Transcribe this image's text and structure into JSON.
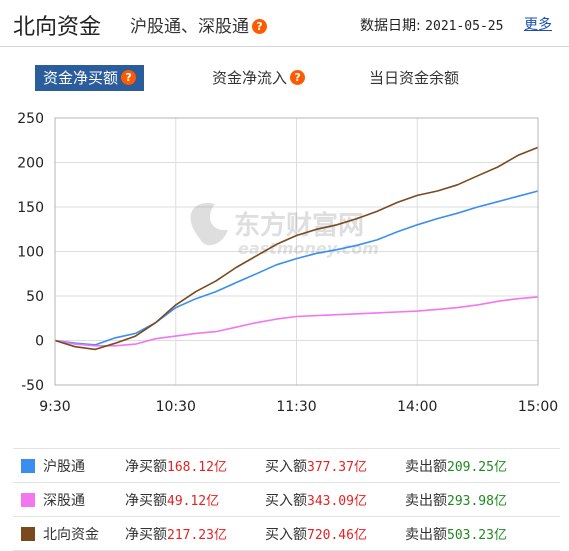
{
  "header": {
    "title": "北向资金",
    "subtitle": "沪股通、深股通",
    "help_glyph": "?",
    "date_label": "数据日期:",
    "date_value": "2021-05-25",
    "more_link": "更多"
  },
  "tabs": [
    {
      "label": "资金净买额",
      "active": true
    },
    {
      "label": "资金净流入",
      "active": false
    },
    {
      "label": "当日资金余额",
      "active": false
    }
  ],
  "watermark": {
    "brand": "东方财富网",
    "domain": "eastmoney.com"
  },
  "colors": {
    "hgt": "#3a8ef0",
    "sgt": "#f276f0",
    "north": "#7a4a1e",
    "grid": "#dddddd",
    "tab_active": "#2b5c9c"
  },
  "chart_data": {
    "type": "line",
    "title": "",
    "xlabel": "",
    "ylabel": "",
    "x_ticks": [
      "9:30",
      "10:30",
      "11:30",
      "14:00",
      "15:00"
    ],
    "y_ticks": [
      250,
      200,
      150,
      100,
      50,
      0,
      -50
    ],
    "ylim": [
      -50,
      250
    ],
    "x_minutes": [
      0,
      10,
      20,
      30,
      40,
      50,
      60,
      70,
      80,
      90,
      100,
      110,
      120,
      130,
      140,
      150,
      160,
      170,
      180,
      190,
      200,
      210,
      220,
      230,
      240
    ],
    "grid": true,
    "series": [
      {
        "name": "沪股通",
        "color": "#3a8ef0",
        "values": [
          0,
          -3,
          -5,
          3,
          8,
          20,
          37,
          47,
          55,
          65,
          75,
          85,
          92,
          98,
          102,
          107,
          113,
          122,
          130,
          137,
          143,
          150,
          156,
          162,
          168
        ]
      },
      {
        "name": "深股通",
        "color": "#f276f0",
        "values": [
          0,
          -4,
          -6,
          -6,
          -4,
          2,
          5,
          8,
          10,
          15,
          20,
          24,
          27,
          28,
          29,
          30,
          31,
          32,
          33,
          35,
          37,
          40,
          44,
          47,
          49
        ]
      },
      {
        "name": "北向资金",
        "color": "#7a4a1e",
        "values": [
          0,
          -7,
          -10,
          -3,
          5,
          20,
          40,
          55,
          67,
          82,
          95,
          108,
          118,
          125,
          130,
          137,
          145,
          155,
          163,
          168,
          175,
          185,
          195,
          208,
          217
        ]
      }
    ]
  },
  "legend": [
    {
      "name": "沪股通",
      "color": "#3a8ef0",
      "net_label": "净买额",
      "net_value": "168.12亿",
      "buy_label": "买入额",
      "buy_value": "377.37亿",
      "sell_label": "卖出额",
      "sell_value": "209.25亿"
    },
    {
      "name": "深股通",
      "color": "#f276f0",
      "net_label": "净买额",
      "net_value": "49.12亿",
      "buy_label": "买入额",
      "buy_value": "343.09亿",
      "sell_label": "卖出额",
      "sell_value": "293.98亿"
    },
    {
      "name": "北向资金",
      "color": "#7a4a1e",
      "net_label": "净买额",
      "net_value": "217.23亿",
      "buy_label": "买入额",
      "buy_value": "720.46亿",
      "sell_label": "卖出额",
      "sell_value": "503.23亿"
    }
  ]
}
